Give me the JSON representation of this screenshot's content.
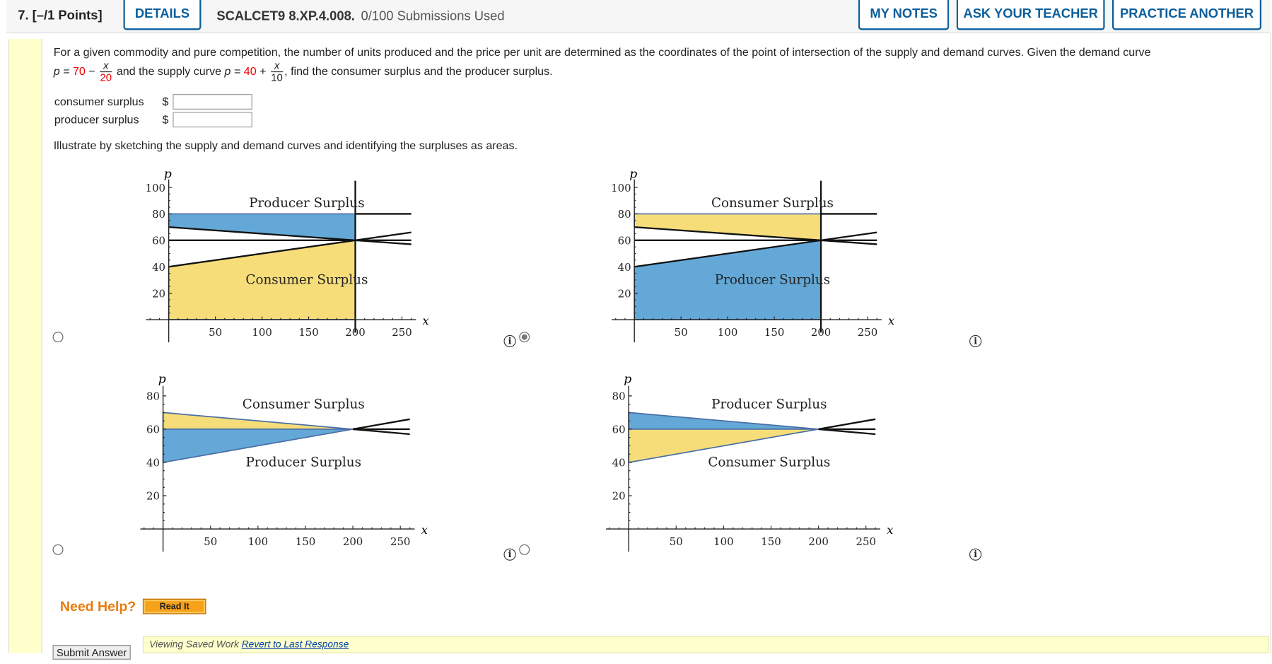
{
  "header": {
    "question_number": "7. [–/1 Points]",
    "details_label": "DETAILS",
    "problem_id": "SCALCET9 8.XP.4.008.",
    "submissions": "0/100 Submissions Used",
    "my_notes_label": "MY NOTES",
    "ask_teacher_label": "ASK YOUR TEACHER",
    "practice_another_label": "PRACTICE ANOTHER"
  },
  "problem": {
    "text1": "For a given commodity and pure competition, the number of units produced and the price per unit are determined as the coordinates of the point of intersection of the supply and demand curves. Given the demand curve",
    "demand_prefix": "p = ",
    "demand_const": "70",
    "demand_op": " − ",
    "demand_num": "x",
    "demand_den": "20",
    "mid_text": " and the supply curve ",
    "supply_prefix": "p = ",
    "supply_const": "40",
    "supply_op": " + ",
    "supply_num": "x",
    "supply_den": "10",
    "end_text": ", find the consumer surplus and the producer surplus.",
    "consumer_label": "consumer surplus",
    "producer_label": "producer surplus",
    "currency": "$",
    "consumer_value": "",
    "producer_value": "",
    "illustrate": "Illustrate by sketching the supply and demand curves and identifying the surpluses as areas."
  },
  "colors": {
    "blue": "#63a8d6",
    "yellow": "#f6dd7a",
    "outline": "#4a6fa5",
    "accent": "#0b5e9b",
    "orange": "#e87b0c"
  },
  "options": [
    {
      "selected": false
    },
    {
      "selected": true
    },
    {
      "selected": false
    },
    {
      "selected": false
    }
  ],
  "chart_data": [
    {
      "type": "area",
      "xlabel": "x",
      "ylabel": "p",
      "xticks": [
        50,
        100,
        150,
        200,
        250
      ],
      "yticks": [
        20,
        40,
        60,
        80,
        100
      ],
      "xlim": [
        0,
        260
      ],
      "ylim": [
        0,
        100
      ],
      "regions": [
        {
          "label": "Producer Surplus",
          "color": "blue",
          "points": [
            [
              0,
              80
            ],
            [
              200,
              80
            ],
            [
              200,
              60
            ],
            [
              0,
              70
            ]
          ]
        },
        {
          "label": "Consumer Surplus",
          "color": "yellow",
          "points": [
            [
              0,
              0
            ],
            [
              200,
              0
            ],
            [
              200,
              60
            ],
            [
              0,
              40
            ]
          ]
        }
      ],
      "lines": [
        {
          "eq": "p = 70 - x/20"
        },
        {
          "eq": "p = 40 + x/10"
        },
        {
          "eq": "p = 60"
        },
        {
          "eq": "p = 80",
          "from": 200
        },
        {
          "eq": "x = 200"
        }
      ]
    },
    {
      "type": "area",
      "xlabel": "x",
      "ylabel": "p",
      "xticks": [
        50,
        100,
        150,
        200,
        250
      ],
      "yticks": [
        20,
        40,
        60,
        80,
        100
      ],
      "xlim": [
        0,
        260
      ],
      "ylim": [
        0,
        100
      ],
      "regions": [
        {
          "label": "Consumer Surplus",
          "color": "yellow",
          "points": [
            [
              0,
              80
            ],
            [
              200,
              80
            ],
            [
              200,
              60
            ],
            [
              0,
              70
            ]
          ]
        },
        {
          "label": "Producer Surplus",
          "color": "blue",
          "points": [
            [
              0,
              0
            ],
            [
              200,
              0
            ],
            [
              200,
              60
            ],
            [
              0,
              40
            ]
          ]
        }
      ],
      "lines": [
        {
          "eq": "p = 70 - x/20"
        },
        {
          "eq": "p = 40 + x/10"
        },
        {
          "eq": "p = 60"
        },
        {
          "eq": "p = 80",
          "from": 200
        },
        {
          "eq": "x = 200"
        }
      ]
    },
    {
      "type": "area",
      "xlabel": "x",
      "ylabel": "p",
      "xticks": [
        50,
        100,
        150,
        200,
        250
      ],
      "yticks": [
        20,
        40,
        60,
        80
      ],
      "xlim": [
        0,
        260
      ],
      "ylim": [
        0,
        80
      ],
      "regions": [
        {
          "label": "Consumer Surplus",
          "color": "yellow",
          "points": [
            [
              0,
              70
            ],
            [
              200,
              60
            ],
            [
              0,
              60
            ]
          ]
        },
        {
          "label": "Producer Surplus",
          "color": "blue",
          "points": [
            [
              0,
              60
            ],
            [
              200,
              60
            ],
            [
              0,
              40
            ]
          ]
        }
      ],
      "lines": [
        {
          "eq": "p = 70 - x/20",
          "from": 200
        },
        {
          "eq": "p = 40 + x/10",
          "from": 200
        },
        {
          "eq": "p = 60",
          "from": 200
        }
      ]
    },
    {
      "type": "area",
      "xlabel": "x",
      "ylabel": "p",
      "xticks": [
        50,
        100,
        150,
        200,
        250
      ],
      "yticks": [
        20,
        40,
        60,
        80
      ],
      "xlim": [
        0,
        260
      ],
      "ylim": [
        0,
        80
      ],
      "regions": [
        {
          "label": "Producer Surplus",
          "color": "blue",
          "points": [
            [
              0,
              70
            ],
            [
              200,
              60
            ],
            [
              0,
              60
            ]
          ]
        },
        {
          "label": "Consumer Surplus",
          "color": "yellow",
          "points": [
            [
              0,
              60
            ],
            [
              200,
              60
            ],
            [
              0,
              40
            ]
          ]
        }
      ],
      "lines": [
        {
          "eq": "p = 70 - x/20",
          "from": 200
        },
        {
          "eq": "p = 40 + x/10",
          "from": 200
        },
        {
          "eq": "p = 60",
          "from": 200
        }
      ]
    }
  ],
  "help": {
    "need_help": "Need Help?",
    "read_it": "Read It"
  },
  "footer": {
    "submit": "Submit Answer",
    "viewing": "Viewing Saved Work ",
    "revert": "Revert to Last Response"
  }
}
